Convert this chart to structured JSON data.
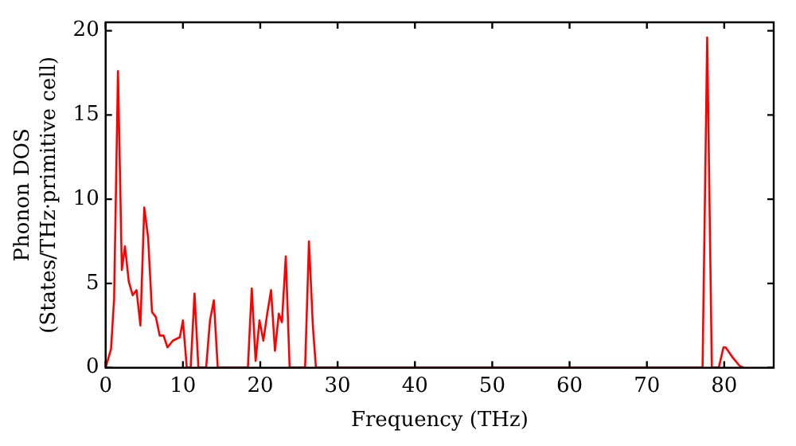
{
  "chart_data": {
    "type": "line",
    "xlabel": "Frequency (THz)",
    "ylabel": "Phonon DOS\n(States/THz·primitive cell)",
    "x": [
      0,
      0.7,
      1.1,
      1.6,
      2.1,
      2.5,
      3.0,
      3.5,
      4.0,
      4.5,
      5.0,
      5.5,
      6.0,
      6.5,
      7.0,
      7.5,
      8.0,
      8.7,
      9.6,
      10.0,
      10.5,
      11.0,
      11.5,
      12.0,
      13.0,
      13.5,
      14.0,
      14.5,
      18.4,
      18.9,
      19.4,
      19.9,
      20.4,
      20.9,
      21.4,
      21.9,
      22.4,
      22.8,
      23.3,
      23.8,
      25.8,
      26.3,
      26.8,
      27.2,
      77.2,
      77.8,
      78.4,
      79.3,
      79.9,
      80.2,
      81.1,
      82.0,
      82.5
    ],
    "series": [
      {
        "color": "#ff0000",
        "values": [
          0,
          1.1,
          4.1,
          17.6,
          5.8,
          7.2,
          5.1,
          4.3,
          4.6,
          2.5,
          9.5,
          7.7,
          3.3,
          3.0,
          1.9,
          1.9,
          1.2,
          1.6,
          1.8,
          2.8,
          0,
          0,
          4.4,
          0,
          0,
          2.8,
          4.0,
          0,
          0,
          4.7,
          0.4,
          2.8,
          1.6,
          3.2,
          4.6,
          1.0,
          3.2,
          2.7,
          6.6,
          0,
          0,
          7.5,
          2.5,
          0,
          0,
          19.6,
          0,
          0,
          1.2,
          1.2,
          0.6,
          0.1,
          0
        ]
      }
    ],
    "xlim": [
      0,
      86.4
    ],
    "xticks": [
      0,
      10,
      20,
      30,
      40,
      50,
      60,
      70,
      80
    ],
    "ylim": [
      0,
      20.5
    ],
    "yticks": [
      0,
      5,
      10,
      15,
      20
    ],
    "grid": false,
    "legend": false,
    "marker": "none",
    "line_style": "solid"
  }
}
